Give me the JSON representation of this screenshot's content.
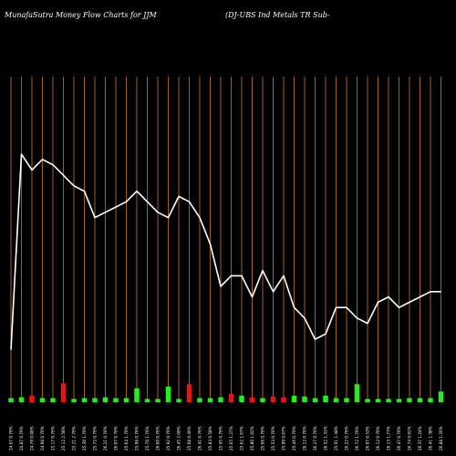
{
  "header": {
    "left_title": "MunafaSutra  Money Flow  Charts for JJM",
    "right_title": "(DJ-UBS Ind Metals TR Sub-"
  },
  "chart_data": {
    "type": "bar",
    "title": "MunafaSutra  Money Flow  Charts for JJM",
    "subtitle": "(DJ-UBS Ind Metals TR Sub-",
    "categories": [
      "24.67 0.76%",
      "24.87 0.76%",
      "24.79 0.08%",
      "24.98 0.76%",
      "25.17 0.76%",
      "25.12 2.58%",
      "25.21 2.76%",
      "25.30 1.76%",
      "25.72 0.76%",
      "26.21 0.76%",
      "26.07 0.76%",
      "25.64 1.76%",
      "25.98 0.76%",
      "25.70 1.76%",
      "26.00 0.76%",
      "25.92 0.76%",
      "26.45 2.06%",
      "25.68 0.46%",
      "26.41 0.76%",
      "25.83 0.58%",
      "25.45 0.76%",
      "25.65 1.27%",
      "25.62 1.67%",
      "25.80 1.02%",
      "25.68 0.76%",
      "25.53 0.76%",
      "25.99 0.67%",
      "25.46 0.76%",
      "26.12 0.76%",
      "26.27 0.76%",
      "26.52 1.31%",
      "25.91 1.48%",
      "26.22 0.76%",
      "26.72 1.76%",
      "26.07 0.53%",
      "26.12 0.76%",
      "26.13 1.77%",
      "26.47 0.76%",
      "26.74 0.91%",
      "26.37 1.24%",
      "26.41 1.38%",
      "26.88 1.26%"
    ],
    "series": [
      {
        "values": [
          0.5,
          0.6,
          0.8,
          0.5,
          0.5,
          2.3,
          0.4,
          0.5,
          0.5,
          0.6,
          0.5,
          0.5,
          1.7,
          0.4,
          0.4,
          1.9,
          0.4,
          2.2,
          0.5,
          0.5,
          0.6,
          1.0,
          0.8,
          0.6,
          0.5,
          0.7,
          0.6,
          0.8,
          0.7,
          0.5,
          0.8,
          0.5,
          0.5,
          2.2,
          0.4,
          0.4,
          0.4,
          0.4,
          0.5,
          0.5,
          0.5,
          1.3
        ],
        "directions": [
          "up",
          "up",
          "down",
          "up",
          "up",
          "down",
          "up",
          "up",
          "up",
          "up",
          "up",
          "up",
          "up",
          "up",
          "up",
          "up",
          "up",
          "down",
          "up",
          "up",
          "up",
          "down",
          "up",
          "down",
          "up",
          "down",
          "down",
          "up",
          "up",
          "up",
          "up",
          "up",
          "up",
          "up",
          "up",
          "up",
          "up",
          "up",
          "up",
          "up",
          "up",
          "up"
        ]
      }
    ],
    "price_line": [
      158,
      195,
      192,
      194,
      193,
      191,
      189,
      188,
      183,
      184,
      185,
      186,
      188,
      186,
      184,
      183,
      187,
      186,
      183,
      178,
      170,
      172,
      172,
      168,
      173,
      169,
      172,
      166,
      164,
      160,
      161,
      166,
      166,
      164,
      163,
      167,
      168,
      166,
      167,
      168,
      169,
      169
    ],
    "colors": {
      "up": "#22ee22",
      "down": "#ee1111",
      "price_line": "#ffffff",
      "grid": "#cc7722",
      "background": "#000000"
    },
    "grid": true
  }
}
